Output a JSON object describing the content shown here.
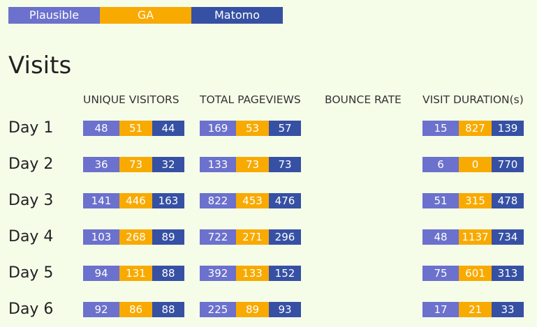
{
  "legend": [
    {
      "name": "Plausible",
      "color": "#6b71cc"
    },
    {
      "name": "GA",
      "color": "#f8aa00"
    },
    {
      "name": "Matomo",
      "color": "#3650a4"
    }
  ],
  "section_title": "Visits",
  "chart_data": {
    "type": "table",
    "title": "Visits",
    "series": [
      "Plausible",
      "GA",
      "Matomo"
    ],
    "colors": {
      "Plausible": "#6b71cc",
      "GA": "#f8aa00",
      "Matomo": "#3650a4"
    },
    "columns": [
      "UNIQUE VISITORS",
      "TOTAL PAGEVIEWS",
      "BOUNCE RATE",
      "VISIT DURATION(s)"
    ],
    "rows": [
      {
        "label": "Day 1",
        "unique_visitors": [
          48,
          51,
          44
        ],
        "total_pageviews": [
          169,
          53,
          57
        ],
        "bounce_rate": [],
        "visit_duration": [
          15,
          827,
          139
        ]
      },
      {
        "label": "Day 2",
        "unique_visitors": [
          36,
          73,
          32
        ],
        "total_pageviews": [
          133,
          73,
          73
        ],
        "bounce_rate": [],
        "visit_duration": [
          6,
          0,
          770
        ]
      },
      {
        "label": "Day 3",
        "unique_visitors": [
          141,
          446,
          163
        ],
        "total_pageviews": [
          822,
          453,
          476
        ],
        "bounce_rate": [],
        "visit_duration": [
          51,
          315,
          478
        ]
      },
      {
        "label": "Day 4",
        "unique_visitors": [
          103,
          268,
          89
        ],
        "total_pageviews": [
          722,
          271,
          296
        ],
        "bounce_rate": [],
        "visit_duration": [
          48,
          1137,
          734
        ]
      },
      {
        "label": "Day 5",
        "unique_visitors": [
          94,
          131,
          88
        ],
        "total_pageviews": [
          392,
          133,
          152
        ],
        "bounce_rate": [],
        "visit_duration": [
          75,
          601,
          313
        ]
      },
      {
        "label": "Day 6",
        "unique_visitors": [
          92,
          86,
          88
        ],
        "total_pageviews": [
          225,
          89,
          93
        ],
        "bounce_rate": [],
        "visit_duration": [
          17,
          21,
          33
        ]
      }
    ]
  }
}
